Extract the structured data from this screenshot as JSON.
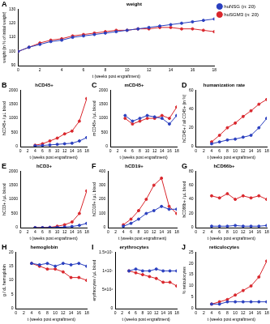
{
  "chart_data": [
    {
      "panel": "A",
      "type": "line",
      "title": "weight",
      "x_label": "t (weeks post engraftment)",
      "y_label": "weight (in % of initial weight)",
      "x": [
        0,
        1,
        2,
        3,
        4,
        5,
        6,
        7,
        8,
        9,
        10,
        11,
        12,
        13,
        14,
        15,
        16,
        17,
        18
      ],
      "series": [
        {
          "name": "huNSG (n: 20)",
          "color": "#2a3fbf",
          "values": [
            100,
            103,
            105,
            107,
            108,
            110,
            111,
            112,
            113,
            114,
            115,
            116,
            117,
            118,
            119,
            120,
            121,
            122,
            123
          ]
        },
        {
          "name": "huSGM3 (n: 20)",
          "color": "#d9262c",
          "values": [
            100,
            103,
            106,
            108,
            109,
            111,
            112,
            113,
            114,
            115,
            115,
            116,
            116,
            117,
            117,
            116,
            116,
            115,
            114
          ]
        }
      ],
      "xlim": [
        0,
        18
      ],
      "xticks": [
        0,
        2,
        4,
        6,
        8,
        10,
        12,
        14,
        16,
        18
      ],
      "ylim": [
        90,
        130
      ],
      "yticks": [
        90,
        100,
        110,
        120,
        130
      ],
      "legend": "right",
      "grid": false,
      "marker": "circle",
      "line_style": "solid"
    },
    {
      "panel": "B",
      "type": "line",
      "title": "hCD45+",
      "x_label": "t (weeks post engraftment)",
      "y_label": "hCD45+ / µL blood",
      "x": [
        4,
        6,
        8,
        10,
        12,
        14,
        16,
        18
      ],
      "series": [
        {
          "color": "#2a3fbf",
          "values": [
            30,
            40,
            60,
            80,
            100,
            120,
            200,
            320
          ]
        },
        {
          "color": "#d9262c",
          "values": [
            50,
            100,
            200,
            300,
            450,
            550,
            900,
            1700
          ]
        }
      ],
      "xlim": [
        0,
        18
      ],
      "xticks": [
        0,
        2,
        4,
        6,
        8,
        10,
        12,
        14,
        16,
        18
      ],
      "ylim": [
        0,
        2000
      ],
      "yticks": [
        0,
        500,
        1000,
        1500,
        2000
      ],
      "grid": false,
      "marker": "circle",
      "line_style": "solid"
    },
    {
      "panel": "C",
      "type": "line",
      "title": "mCD45+",
      "x_label": "t (weeks post engraftment)",
      "y_label": "mCD45+ / µL blood",
      "x": [
        4,
        6,
        8,
        10,
        12,
        14,
        16,
        18
      ],
      "series": [
        {
          "color": "#2a3fbf",
          "values": [
            1100,
            900,
            1000,
            1100,
            1050,
            1000,
            800,
            1100
          ]
        },
        {
          "color": "#d9262c",
          "values": [
            1000,
            800,
            900,
            1000,
            1000,
            1100,
            1000,
            1400
          ]
        }
      ],
      "xlim": [
        0,
        18
      ],
      "xticks": [
        0,
        2,
        4,
        6,
        8,
        10,
        12,
        14,
        16,
        18
      ],
      "ylim": [
        0,
        2000
      ],
      "yticks": [
        0,
        500,
        1000,
        1500,
        2000
      ],
      "grid": false,
      "marker": "circle",
      "line_style": "solid"
    },
    {
      "panel": "D",
      "type": "line",
      "title": "humanization rate",
      "x_label": "t (weeks post engraftment)",
      "y_label": "hCD45+ / all CD45+ (in %)",
      "x": [
        4,
        6,
        8,
        10,
        12,
        14,
        16,
        18
      ],
      "series": [
        {
          "color": "#2a3fbf",
          "values": [
            3,
            5,
            7,
            8,
            10,
            12,
            20,
            30
          ]
        },
        {
          "color": "#d9262c",
          "values": [
            5,
            12,
            20,
            25,
            32,
            38,
            45,
            50
          ]
        }
      ],
      "xlim": [
        0,
        18
      ],
      "xticks": [
        0,
        2,
        4,
        6,
        8,
        10,
        12,
        14,
        16,
        18
      ],
      "ylim": [
        0,
        60
      ],
      "yticks": [
        0,
        20,
        40,
        60
      ],
      "grid": false,
      "marker": "circle",
      "line_style": "solid"
    },
    {
      "panel": "E",
      "type": "line",
      "title": "hCD3+",
      "x_label": "t (weeks post engraftment)",
      "y_label": "hCD3+ / µL blood",
      "x": [
        4,
        6,
        8,
        10,
        12,
        14,
        16,
        18
      ],
      "series": [
        {
          "color": "#2a3fbf",
          "values": [
            0,
            0,
            5,
            10,
            20,
            40,
            80,
            150
          ]
        },
        {
          "color": "#d9262c",
          "values": [
            0,
            0,
            10,
            50,
            100,
            200,
            500,
            1300
          ]
        }
      ],
      "xlim": [
        0,
        18
      ],
      "xticks": [
        0,
        2,
        4,
        6,
        8,
        10,
        12,
        14,
        16,
        18
      ],
      "ylim": [
        0,
        2000
      ],
      "yticks": [
        0,
        500,
        1000,
        1500,
        2000
      ],
      "grid": false,
      "marker": "circle",
      "line_style": "solid"
    },
    {
      "panel": "F",
      "type": "line",
      "title": "hCD19+",
      "x_label": "t (weeks post engraftment)",
      "y_label": "hCD19+ / µL blood",
      "x": [
        4,
        6,
        8,
        10,
        12,
        14,
        16,
        18
      ],
      "series": [
        {
          "color": "#2a3fbf",
          "values": [
            10,
            30,
            60,
            100,
            120,
            150,
            130,
            130
          ]
        },
        {
          "color": "#d9262c",
          "values": [
            20,
            60,
            120,
            200,
            300,
            350,
            150,
            100
          ]
        }
      ],
      "xlim": [
        0,
        18
      ],
      "xticks": [
        0,
        2,
        4,
        6,
        8,
        10,
        12,
        14,
        16,
        18
      ],
      "ylim": [
        0,
        400
      ],
      "yticks": [
        0,
        100,
        200,
        300,
        400
      ],
      "grid": false,
      "marker": "circle",
      "line_style": "solid"
    },
    {
      "panel": "G",
      "type": "line",
      "title": "hCD66b+",
      "x_label": "t (weeks post engraftment)",
      "y_label": "hCD66b+ / µL blood",
      "x": [
        4,
        6,
        8,
        10,
        12,
        14,
        16,
        18
      ],
      "series": [
        {
          "color": "#2a3fbf",
          "values": [
            2,
            2,
            2,
            3,
            2,
            2,
            2,
            3
          ]
        },
        {
          "color": "#d9262c",
          "values": [
            45,
            42,
            48,
            40,
            45,
            42,
            45,
            40
          ]
        }
      ],
      "xlim": [
        0,
        18
      ],
      "xticks": [
        0,
        2,
        4,
        6,
        8,
        10,
        12,
        14,
        16,
        18
      ],
      "ylim": [
        0,
        80
      ],
      "yticks": [
        0,
        20,
        40,
        60,
        80
      ],
      "grid": false,
      "marker": "circle",
      "line_style": "solid"
    },
    {
      "panel": "H",
      "type": "line",
      "title": "hemoglobin",
      "x_label": "t (weeks post engraftment)",
      "y_label": "g / dL hemoglobin",
      "x": [
        4,
        6,
        8,
        10,
        12,
        14,
        16,
        18
      ],
      "series": [
        {
          "color": "#2a3fbf",
          "values": [
            16,
            15.5,
            16,
            15,
            16,
            15.5,
            16,
            15
          ]
        },
        {
          "color": "#d9262c",
          "values": [
            16,
            15,
            14,
            14,
            13,
            11,
            11,
            10
          ]
        }
      ],
      "xlim": [
        0,
        18
      ],
      "xticks": [
        0,
        2,
        4,
        6,
        8,
        10,
        12,
        14,
        16,
        18
      ],
      "ylim": [
        0,
        20
      ],
      "yticks": [
        0,
        5,
        10,
        15,
        20
      ],
      "grid": false,
      "marker": "circle",
      "line_style": "solid"
    },
    {
      "panel": "I",
      "type": "line",
      "title": "erythrocytes",
      "x_label": "t (weeks post engraftment)",
      "y_label": "erythrocytes / µL blood",
      "x": [
        4,
        6,
        8,
        10,
        12,
        14,
        16,
        18
      ],
      "series": [
        {
          "color": "#2a3fbf",
          "values": [
            10000000,
            10500000,
            10000000,
            10000000,
            10500000,
            10000000,
            10000000,
            10000000
          ]
        },
        {
          "color": "#d9262c",
          "values": [
            10000000,
            9500000,
            9000000,
            8500000,
            8000000,
            7000000,
            7000000,
            6000000
          ]
        }
      ],
      "xlim": [
        0,
        18
      ],
      "xticks": [
        0,
        2,
        4,
        6,
        8,
        10,
        12,
        14,
        16,
        18
      ],
      "ylim": [
        0,
        15000000
      ],
      "yticks": [
        0,
        {
          "value": 5000000,
          "label": "5×10⁶"
        },
        {
          "value": 10000000,
          "label": "1×10⁷"
        },
        {
          "value": 15000000,
          "label": "1.5×10⁷"
        }
      ],
      "grid": false,
      "marker": "circle",
      "line_style": "solid"
    },
    {
      "panel": "J",
      "type": "line",
      "title": "reticulocytes",
      "x_label": "t (weeks post engraftment)",
      "y_label": "% reticulocytes",
      "x": [
        4,
        6,
        8,
        10,
        12,
        14,
        16,
        18
      ],
      "series": [
        {
          "color": "#2a3fbf",
          "values": [
            2,
            2,
            3,
            3,
            3,
            3,
            3,
            3
          ]
        },
        {
          "color": "#d9262c",
          "values": [
            2,
            3,
            4,
            6,
            8,
            10,
            14,
            21
          ]
        }
      ],
      "xlim": [
        0,
        18
      ],
      "xticks": [
        0,
        2,
        4,
        6,
        8,
        10,
        12,
        14,
        16,
        18
      ],
      "ylim": [
        0,
        25
      ],
      "yticks": [
        0,
        5,
        10,
        15,
        20,
        25
      ],
      "grid": false,
      "marker": "circle",
      "line_style": "solid"
    }
  ]
}
